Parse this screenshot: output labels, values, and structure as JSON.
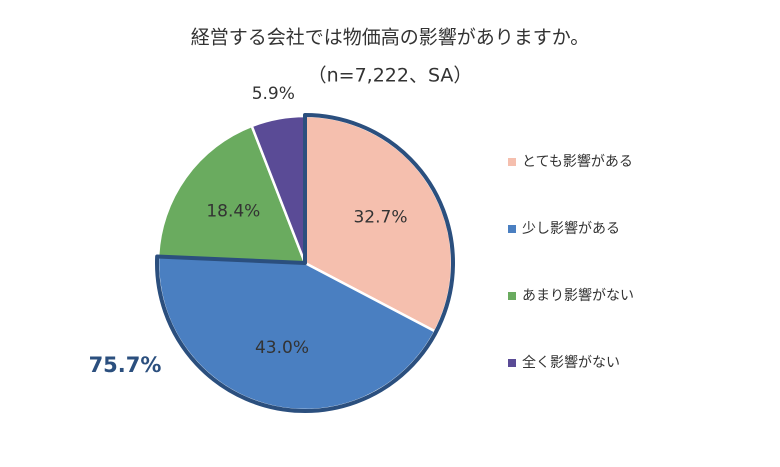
{
  "chart_data": {
    "type": "pie",
    "title": "経営する会社では物価高の影響がありますか。",
    "subtitle": "（n=7,222、SA）",
    "categories": [
      "とても影響がある",
      "少し影響がある",
      "あまり影響がない",
      "全く影響がない"
    ],
    "values": [
      32.7,
      43.0,
      18.4,
      5.9
    ],
    "value_labels": [
      "32.7%",
      "43.0%",
      "18.4%",
      "5.9%"
    ],
    "colors": [
      "#f5bfae",
      "#4a7fc1",
      "#6aab5f",
      "#5a4b96"
    ],
    "annotation": "75.7%",
    "legend": "right"
  }
}
